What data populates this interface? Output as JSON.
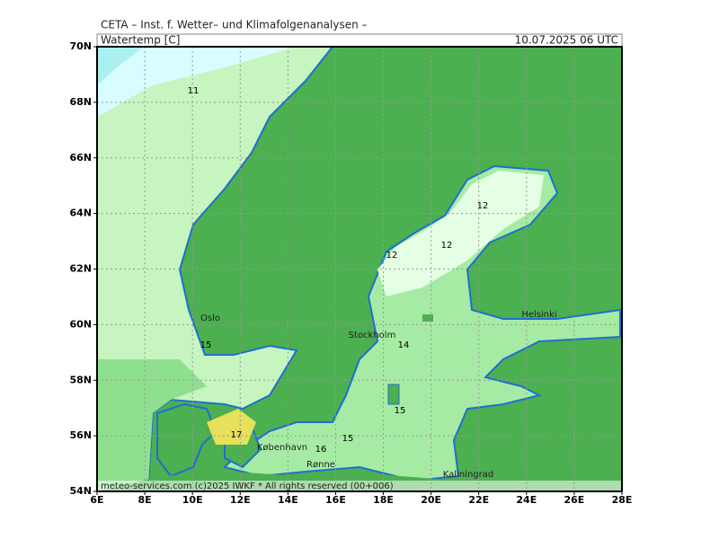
{
  "header": {
    "title": "CETA – Inst. f. Wetter– und Klimafolgenanalysen –",
    "variable": "Watertemp [C]",
    "datetime": "10.07.2025 06 UTC"
  },
  "map": {
    "lat_labels": [
      "70N",
      "68N",
      "66N",
      "64N",
      "62N",
      "60N",
      "58N",
      "56N",
      "54N"
    ],
    "lon_labels": [
      "6E",
      "8E",
      "10E",
      "12E",
      "14E",
      "16E",
      "18E",
      "20E",
      "22E",
      "24E",
      "26E",
      "28E"
    ],
    "places": [
      "Oslo",
      "Stockholm",
      "Helsinki",
      "København",
      "Rønne",
      "Kaliningrad"
    ],
    "contour_labels": [
      "11",
      "12",
      "12",
      "12",
      "14",
      "15",
      "15",
      "15",
      "16",
      "17"
    ]
  },
  "footer": "meteo-services.com (c)2025 IWKF * All rights reserved (00+006)"
}
